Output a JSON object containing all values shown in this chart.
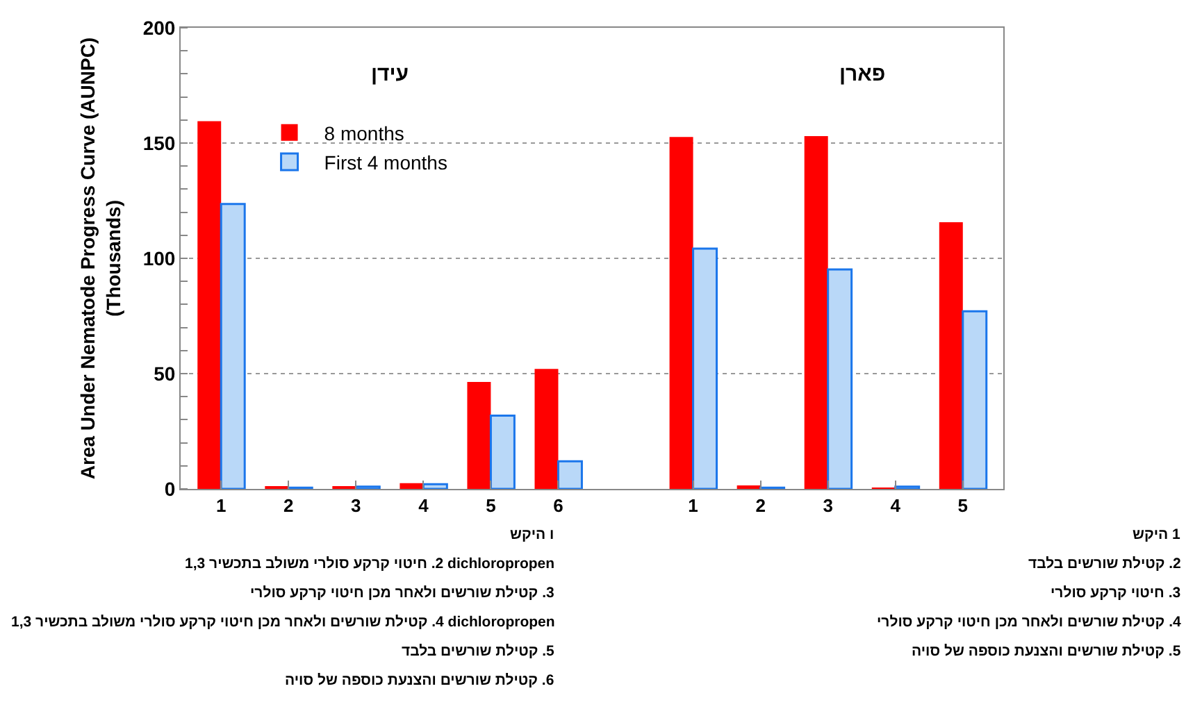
{
  "chart_data": {
    "type": "bar",
    "ylabel": "Area Under Nematode Progress Curve (AUNPC)\n(Thousands)",
    "categories": [
      "1",
      "2",
      "3",
      "4",
      "5",
      "6",
      null,
      "1",
      "2",
      "3",
      "4",
      "5"
    ],
    "series": [
      {
        "name": "8 months",
        "color": "#ff0000",
        "values": [
          159.5,
          1,
          1,
          2.5,
          46.4,
          52,
          null,
          152.6,
          1.5,
          153,
          0.5,
          115.7
        ]
      },
      {
        "name": "First 4 months",
        "color": "#b9d8f8",
        "values": [
          123.6,
          0.5,
          1,
          2,
          31.8,
          12,
          null,
          104.2,
          0.5,
          95.2,
          1,
          77
        ]
      }
    ],
    "ylim": [
      0,
      200
    ],
    "yticks": [
      0,
      50,
      100,
      150,
      200
    ],
    "grid": "y",
    "legend": "top left",
    "annotations": [
      "עידן",
      "פארן",
      "ו היקש",
      "2. חיטוי קרקע סולרי משולב בתכשיר 1,3 dichloropropen",
      "3. קטילת שורשים ולאחר מכן חיטוי קרקע סולרי",
      "4. קטילת שורשים ולאחר מכן חיטוי קרקע סולרי משולב בתכשיר 1,3 dichloropropen",
      "5. קטילת שורשים בלבד",
      "6. קטילת שורשים והצנעת כוספה של סויה",
      "1 היקש",
      "2. קטילת שורשים בלבד",
      "3. חיטוי קרקע סולרי",
      "4. קטילת שורשים ולאחר מכן חיטוי קרקע סולרי",
      "5. קטילת שורשים והצנעת כוספה של סויה"
    ]
  }
}
